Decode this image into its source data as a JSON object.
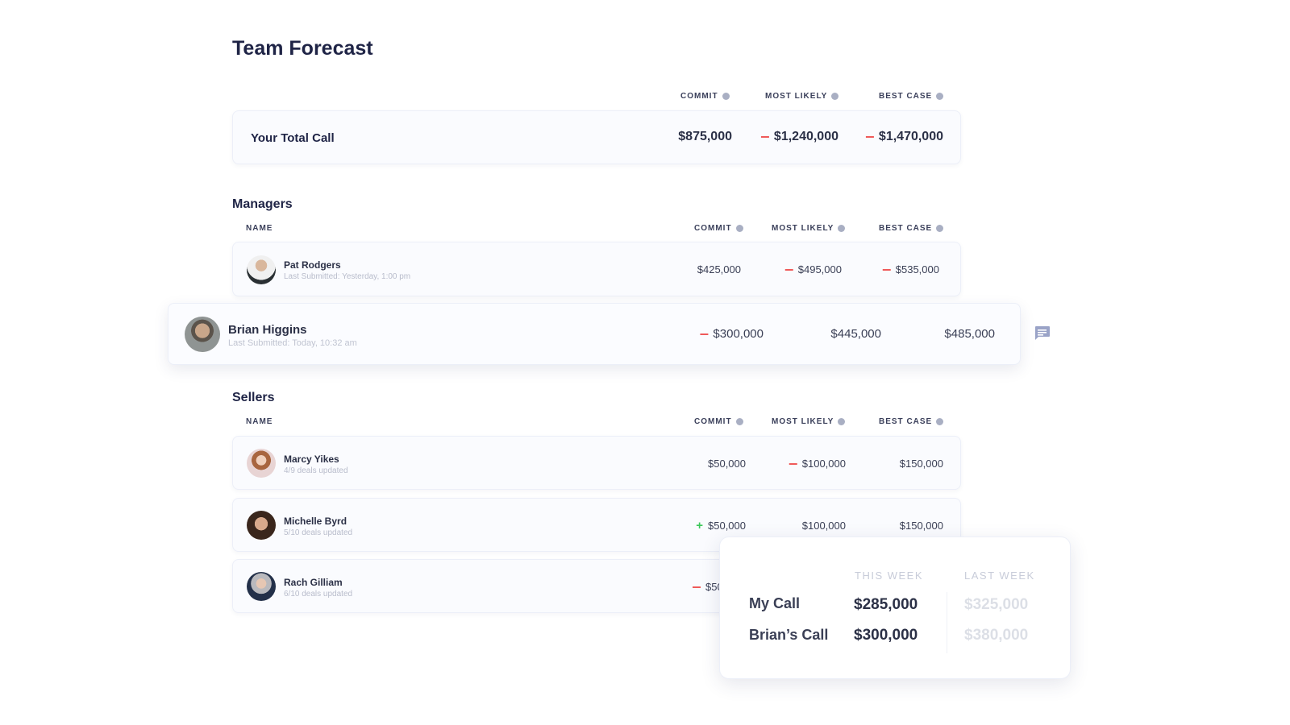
{
  "title": "Team Forecast",
  "columns": {
    "commit": "COMMIT",
    "most_likely": "MOST LIKELY",
    "best_case": "BEST CASE",
    "name": "NAME"
  },
  "total": {
    "label": "Your Total Call",
    "commit": "$875,000",
    "most_likely": "$1,240,000",
    "best_case": "$1,470,000",
    "most_likely_trend": "down",
    "best_case_trend": "down"
  },
  "managers": {
    "heading": "Managers",
    "rows": [
      {
        "name": "Pat Rodgers",
        "sub": "Last Submitted: Yesterday, 1:00 pm",
        "commit": "$425,000",
        "most_likely": "$495,000",
        "best_case": "$535,000",
        "commit_trend": "none",
        "most_likely_trend": "down",
        "best_case_trend": "down"
      },
      {
        "name": "Brian Higgins",
        "sub": "Last Submitted: Today, 10:32 am",
        "commit": "$300,000",
        "most_likely": "$445,000",
        "best_case": "$485,000",
        "commit_trend": "down",
        "most_likely_trend": "none",
        "best_case_trend": "none"
      }
    ]
  },
  "sellers": {
    "heading": "Sellers",
    "rows": [
      {
        "name": "Marcy Yikes",
        "sub": "4/9 deals updated",
        "commit": "$50,000",
        "most_likely": "$100,000",
        "best_case": "$150,000",
        "commit_trend": "none",
        "most_likely_trend": "down"
      },
      {
        "name": "Michelle Byrd",
        "sub": "5/10 deals updated",
        "commit": "$50,000",
        "most_likely": "$100,000",
        "best_case": "$150,000",
        "commit_trend": "up"
      },
      {
        "name": "Rach Gilliam",
        "sub": "6/10 deals updated",
        "commit": "$50",
        "commit_trend": "down"
      }
    ]
  },
  "popup": {
    "this_week": "THIS WEEK",
    "last_week": "LAST WEEK",
    "rows": [
      {
        "label": "My Call",
        "this_week": "$285,000",
        "last_week": "$325,000"
      },
      {
        "label": "Brian’s Call",
        "this_week": "$300,000",
        "last_week": "$380,000"
      }
    ]
  },
  "colors": {
    "down": "#ef5a5a",
    "up": "#3cc75a",
    "heading": "#1f2446"
  },
  "icons": {
    "info": "info-icon",
    "comment": "comment-icon"
  }
}
